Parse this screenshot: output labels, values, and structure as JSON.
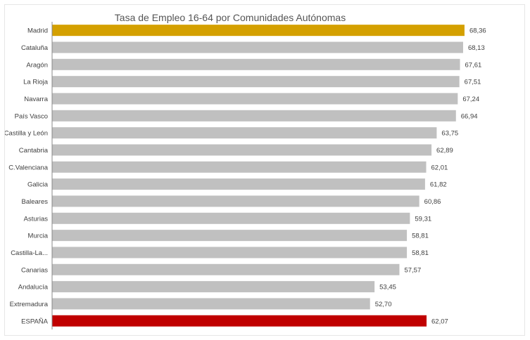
{
  "chart_data": {
    "type": "bar",
    "orientation": "horizontal",
    "title": "Tasa de Empleo 16-64 por Comunidades Autónomas",
    "xlabel": "",
    "ylabel": "",
    "xlim": [
      0,
      70
    ],
    "grid": false,
    "legend": "none",
    "categories": [
      "Madrid",
      "Cataluña",
      "Aragón",
      "La Rioja",
      "Navarra",
      "País Vasco",
      "Castilla y León",
      "Cantabria",
      "C.Valenciana",
      "Galicia",
      "Baleares",
      "Asturias",
      "Murcia",
      "Castilla-La...",
      "Canarias",
      "Andalucía",
      "Extremadura",
      "ESPAÑA"
    ],
    "values": [
      68.36,
      68.13,
      67.61,
      67.51,
      67.24,
      66.94,
      63.75,
      62.89,
      62.01,
      61.82,
      60.86,
      59.31,
      58.81,
      58.81,
      57.57,
      53.45,
      52.7,
      62.07
    ],
    "value_labels": [
      "68,36",
      "68,13",
      "67,61",
      "67,51",
      "67,24",
      "66,94",
      "63,75",
      "62,89",
      "62,01",
      "61,82",
      "60,86",
      "59,31",
      "58,81",
      "58,81",
      "57,57",
      "53,45",
      "52,70",
      "62,07"
    ],
    "colors": {
      "default_bar": "#c0c0c0",
      "highlight_bar": "#d4a000",
      "total_bar": "#c00000",
      "label_text": "#404040",
      "axis_line": "#888888"
    },
    "bar_colors": [
      "#d4a000",
      "#c0c0c0",
      "#c0c0c0",
      "#c0c0c0",
      "#c0c0c0",
      "#c0c0c0",
      "#c0c0c0",
      "#c0c0c0",
      "#c0c0c0",
      "#c0c0c0",
      "#c0c0c0",
      "#c0c0c0",
      "#c0c0c0",
      "#c0c0c0",
      "#c0c0c0",
      "#c0c0c0",
      "#c0c0c0",
      "#c00000"
    ]
  }
}
